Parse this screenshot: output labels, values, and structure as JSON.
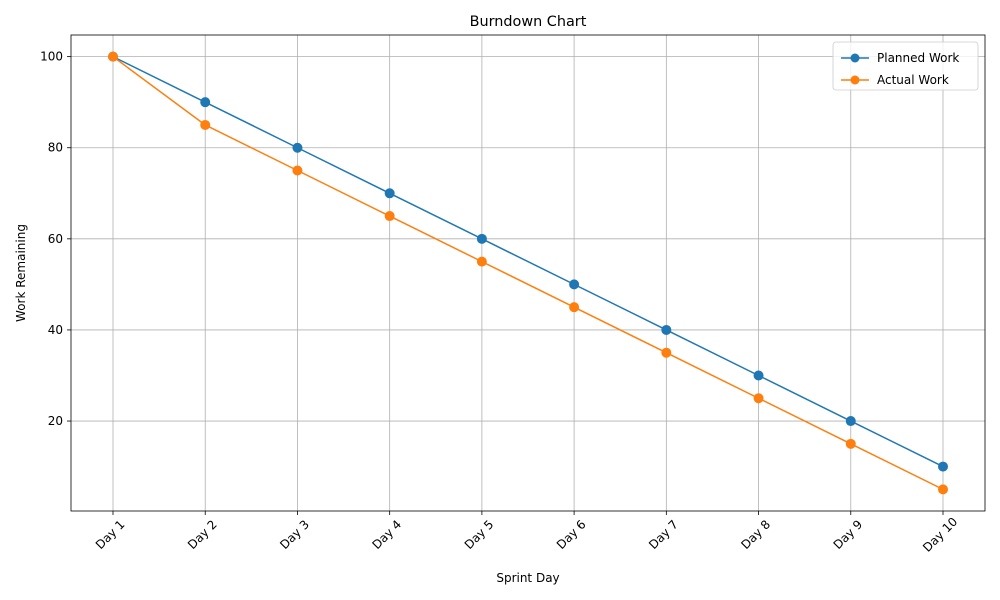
{
  "chart_data": {
    "type": "line",
    "title": "Burndown Chart",
    "xlabel": "Sprint Day",
    "ylabel": "Work Remaining",
    "categories": [
      "Day 1",
      "Day 2",
      "Day 3",
      "Day 4",
      "Day 5",
      "Day 6",
      "Day 7",
      "Day 8",
      "Day 9",
      "Day 10"
    ],
    "series": [
      {
        "name": "Planned Work",
        "color": "#1f77b4",
        "values": [
          100,
          90,
          80,
          70,
          60,
          50,
          40,
          30,
          20,
          10
        ]
      },
      {
        "name": "Actual Work",
        "color": "#ff7f0e",
        "values": [
          100,
          85,
          75,
          65,
          55,
          45,
          35,
          25,
          15,
          5
        ]
      }
    ],
    "ylim": [
      0.25,
      104.75
    ],
    "yticks": [
      20,
      40,
      60,
      80,
      100
    ],
    "grid": true,
    "legend_position": "top-right",
    "markers": "circle"
  }
}
